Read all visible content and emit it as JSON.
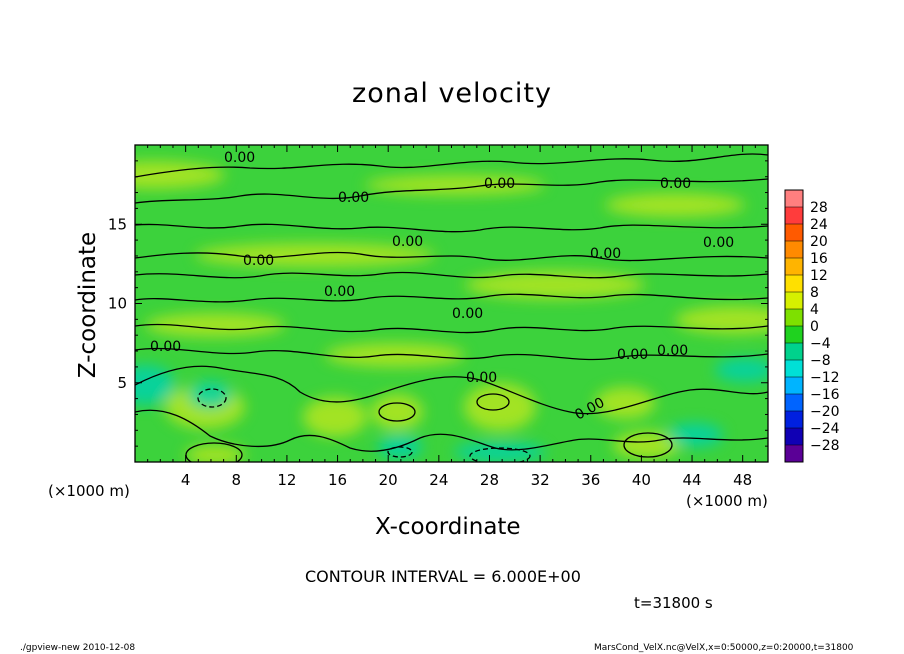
{
  "chart_data": {
    "type": "heatmap",
    "subtype": "filled contour",
    "title": "zonal velocity",
    "xlabel": "X-coordinate",
    "ylabel": "Z-coordinate",
    "x_unit": "(×1000 m)",
    "x_unit_right": "(×1000 m)",
    "xlim": [
      0,
      50
    ],
    "ylim": [
      0,
      20
    ],
    "x_ticks": [
      4,
      8,
      12,
      16,
      20,
      24,
      28,
      32,
      36,
      40,
      44,
      48
    ],
    "y_ticks": [
      5,
      10,
      15
    ],
    "grid": false,
    "contour_interval_text": "CONTOUR INTERVAL = 6.000E+00",
    "time_text": "t=31800 s",
    "contour_labels": [
      "0.00",
      "0.00",
      "0.00",
      "0.00",
      "0.00",
      "0.00",
      "0.00",
      "0.00",
      "0.00",
      "0.00",
      "0.00",
      "0.00",
      "0.00",
      "0.00",
      "0.00"
    ],
    "colorbar": {
      "levels": [
        28,
        24,
        20,
        16,
        12,
        8,
        4,
        0,
        -4,
        -8,
        -12,
        -16,
        -20,
        -24,
        -28
      ],
      "colors": [
        "#ff7f7f",
        "#ff3c3c",
        "#ff5a00",
        "#ff8a00",
        "#ffb400",
        "#ffe000",
        "#d6f000",
        "#7ee000",
        "#1fd21f",
        "#00d28c",
        "#00e0d6",
        "#00b4ff",
        "#0064ff",
        "#0020e0",
        "#1000b4",
        "#5a0096"
      ]
    },
    "field_colors": {
      "background": "#3cd23c",
      "positive_patch": "#b4e61e",
      "negative_patch": "#00d2aa"
    }
  },
  "footer": {
    "left": "./gpview-new   2010-12-08",
    "right": "MarsCond_VelX.nc@VelX,x=0:50000,z=0:20000,t=31800"
  }
}
